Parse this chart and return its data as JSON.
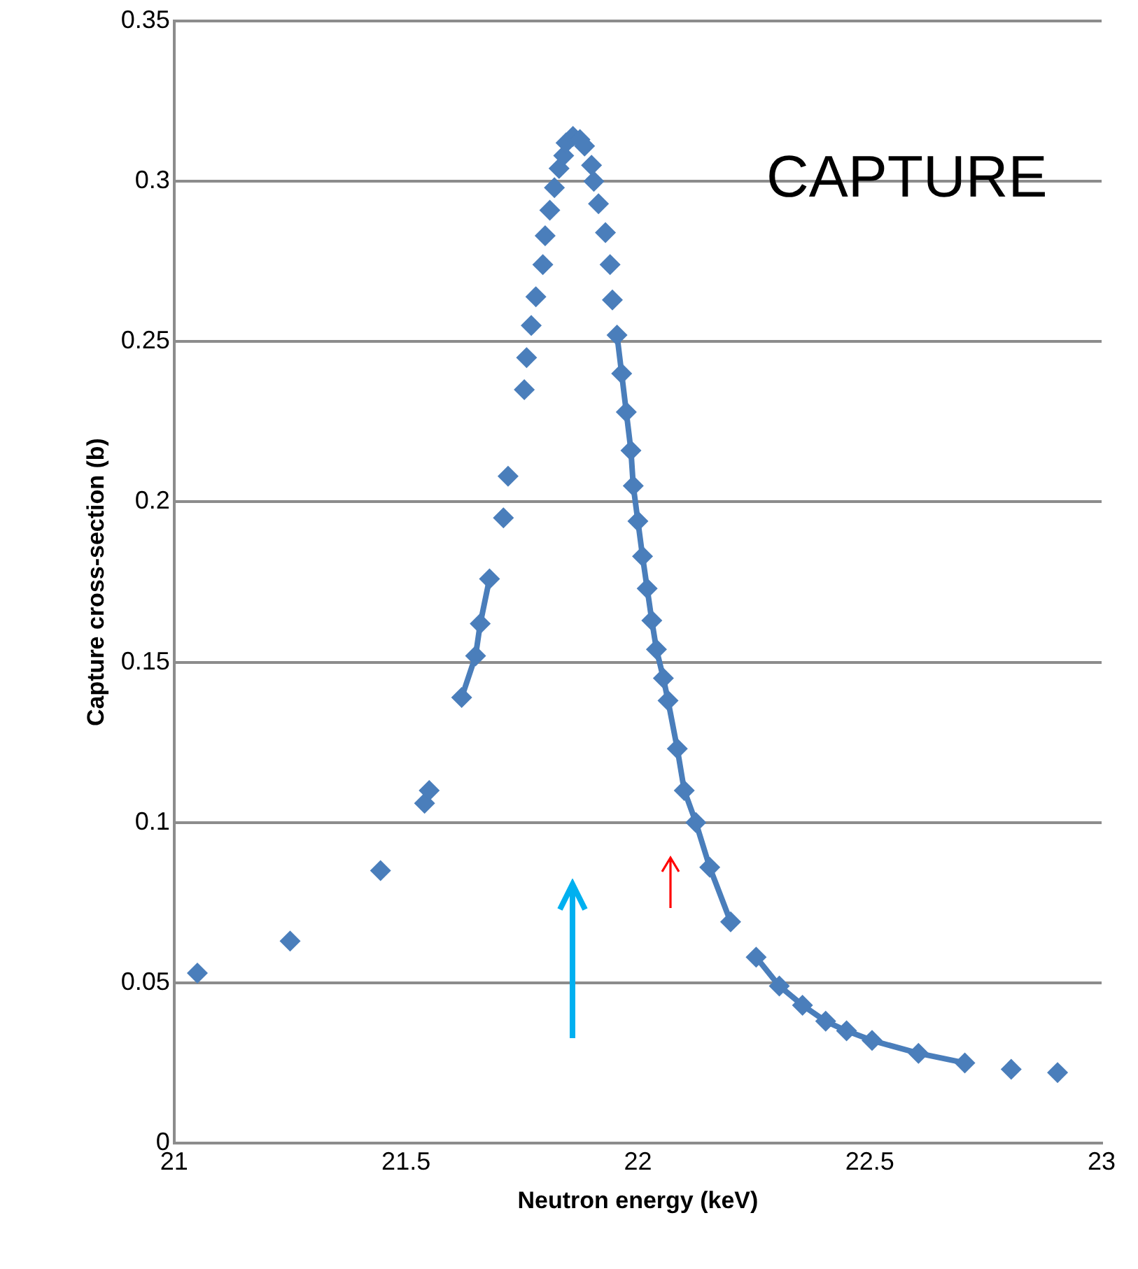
{
  "chart_data": {
    "type": "scatter",
    "xlabel": "Neutron energy (keV)",
    "ylabel": "Capture cross-section (b)",
    "annotations": [
      "CAPTURE"
    ],
    "xlim": [
      21,
      23
    ],
    "xticks": [
      21,
      21.5,
      22,
      22.5,
      23
    ],
    "ylim": [
      0,
      0.35
    ],
    "yticks": [
      0,
      0.05,
      0.1,
      0.15,
      0.2,
      0.25,
      0.3,
      0.35
    ],
    "grid": "y",
    "legend": false,
    "marker": "diamond",
    "series": [
      {
        "type": "scatter",
        "color": "#4a7ebb",
        "x": [
          21.05,
          21.25,
          21.445,
          21.54,
          21.55,
          21.71,
          21.72,
          21.755,
          21.76,
          21.77,
          21.78,
          21.795,
          21.8,
          21.81,
          21.82,
          21.83,
          21.84,
          21.845,
          21.86,
          21.875,
          21.885,
          21.9,
          21.905,
          21.915,
          21.93,
          21.94,
          21.945,
          22.805,
          22.905
        ],
        "values": [
          0.053,
          0.063,
          0.085,
          0.106,
          0.11,
          0.195,
          0.208,
          0.235,
          0.245,
          0.255,
          0.264,
          0.274,
          0.283,
          0.291,
          0.298,
          0.304,
          0.308,
          0.312,
          0.314,
          0.313,
          0.311,
          0.305,
          0.3,
          0.293,
          0.284,
          0.274,
          0.263,
          0.023,
          0.022
        ]
      },
      {
        "type": "line",
        "color": "#4a7ebb",
        "x": [
          21.62,
          21.65,
          21.66,
          21.68
        ],
        "values": [
          0.139,
          0.152,
          0.162,
          0.176
        ]
      },
      {
        "type": "line",
        "color": "#4a7ebb",
        "x": [
          21.955,
          21.965,
          21.975,
          21.985,
          21.99,
          22.0,
          22.01,
          22.02,
          22.03,
          22.04,
          22.055,
          22.065,
          22.085,
          22.1,
          22.125,
          22.155,
          22.2
        ],
        "values": [
          0.252,
          0.24,
          0.228,
          0.216,
          0.205,
          0.194,
          0.183,
          0.173,
          0.163,
          0.154,
          0.145,
          0.138,
          0.123,
          0.11,
          0.1,
          0.086,
          0.069
        ]
      },
      {
        "type": "line",
        "color": "#4a7ebb",
        "x": [
          22.255,
          22.305,
          22.355,
          22.405,
          22.45,
          22.505,
          22.605,
          22.705
        ],
        "values": [
          0.058,
          0.049,
          0.043,
          0.038,
          0.035,
          0.032,
          0.028,
          0.025
        ]
      }
    ]
  }
}
